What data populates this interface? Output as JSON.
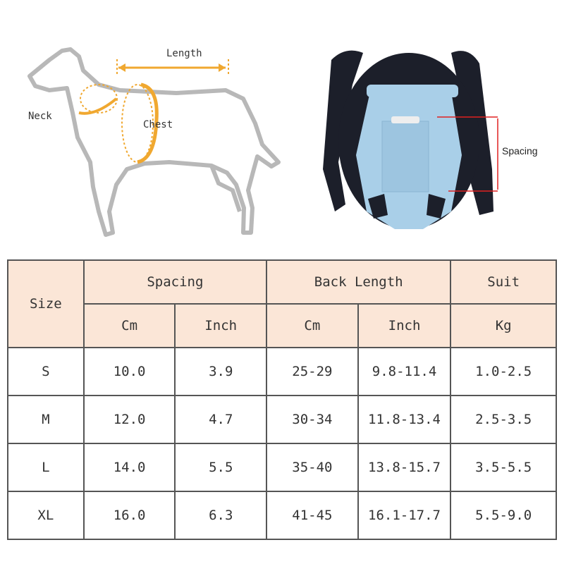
{
  "illustration": {
    "dog_labels": {
      "length": "Length",
      "neck": "Neck",
      "chest": "Chest"
    },
    "carrier_label": "Spacing",
    "colors": {
      "arrow": "#f0a830",
      "carrier": "#a9cfe8",
      "straps": "#1c1f2a",
      "spacing_marker": "#e02020"
    }
  },
  "table": {
    "header_fill": "#fbe6d7",
    "size_header": "Size",
    "groups": [
      "Spacing",
      "Back Length",
      "Suit"
    ],
    "units": [
      "Cm",
      "Inch",
      "Cm",
      "Inch",
      "Kg"
    ],
    "rows": [
      [
        "S",
        "10.0",
        "3.9",
        "25-29",
        "9.8-11.4",
        "1.0-2.5"
      ],
      [
        "M",
        "12.0",
        "4.7",
        "30-34",
        "11.8-13.4",
        "2.5-3.5"
      ],
      [
        "L",
        "14.0",
        "5.5",
        "35-40",
        "13.8-15.7",
        "3.5-5.5"
      ],
      [
        "XL",
        "16.0",
        "6.3",
        "41-45",
        "16.1-17.7",
        "5.5-9.0"
      ]
    ]
  }
}
